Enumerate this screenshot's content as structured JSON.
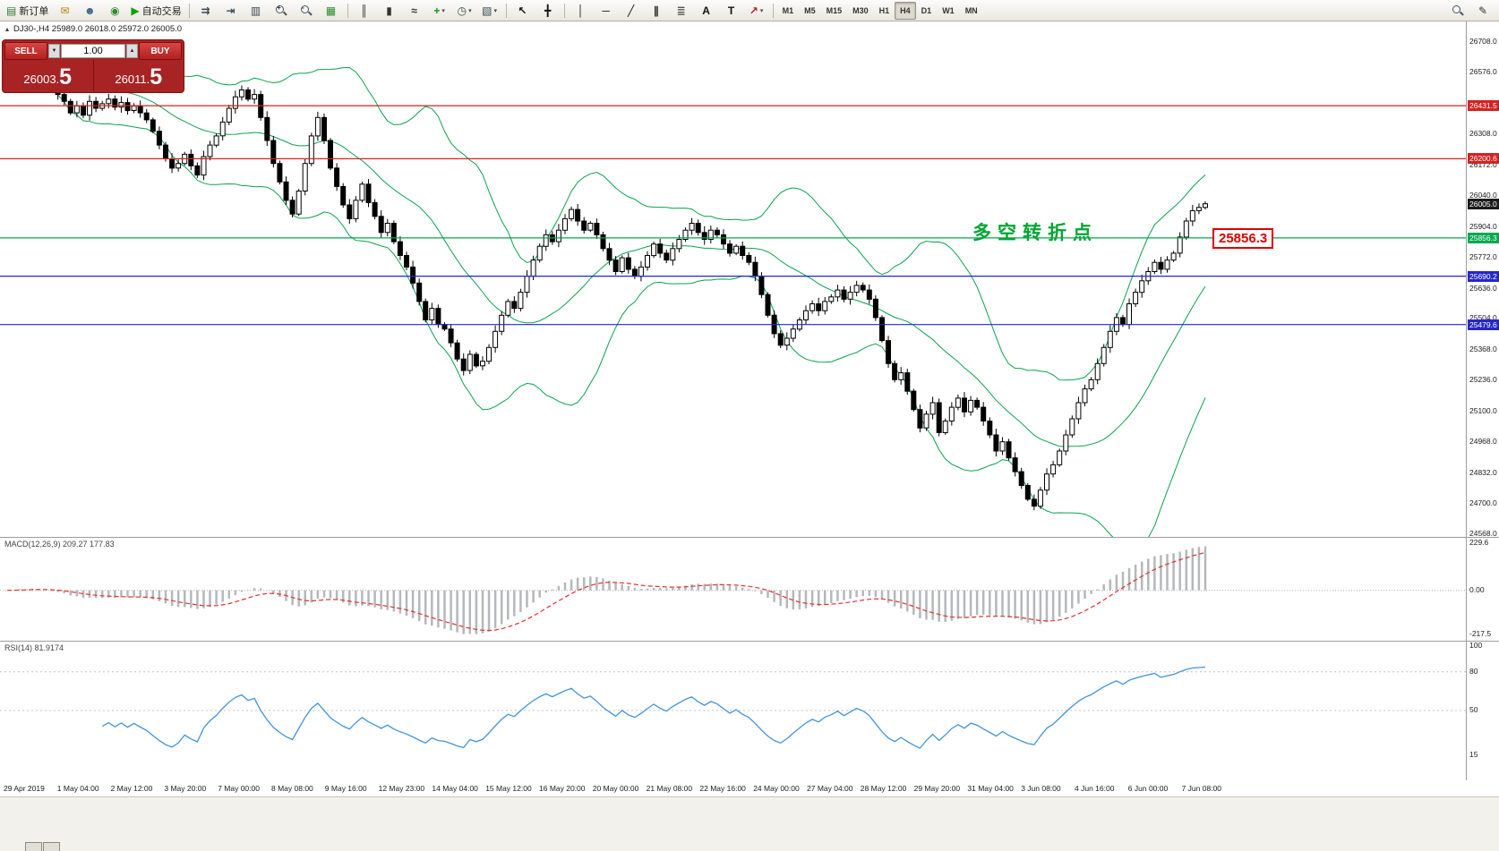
{
  "toolbar": {
    "new_order_label": "新订单",
    "auto_trading_label": "自动交易",
    "timeframes": [
      "M1",
      "M5",
      "M15",
      "M30",
      "H1",
      "H4",
      "D1",
      "W1",
      "MN"
    ],
    "active_timeframe": "H4",
    "items": [
      {
        "type": "btn",
        "name": "new-order-button",
        "glyph": "▤",
        "color": "#2e7d32",
        "label_key": "new_order_label"
      },
      {
        "type": "btn",
        "name": "mail-button",
        "glyph": "✉",
        "color": "#b8860b"
      },
      {
        "type": "btn",
        "name": "profile-button",
        "glyph": "☻",
        "color": "#36648b"
      },
      {
        "type": "btn",
        "name": "community-button",
        "glyph": "◉",
        "color": "#2e8b2e"
      },
      {
        "type": "btn",
        "name": "autotrading-button",
        "glyph": "▶",
        "color": "#12a012",
        "label_key": "auto_trading_label"
      },
      {
        "type": "sep"
      },
      {
        "type": "btn",
        "name": "autoscroll-button",
        "glyph": "⇉",
        "color": "#37474f"
      },
      {
        "type": "btn",
        "name": "chart-shift-button",
        "glyph": "⇥",
        "color": "#37474f"
      },
      {
        "type": "btn",
        "name": "data-window-button",
        "glyph": "▥",
        "color": "#37474f"
      },
      {
        "type": "mag",
        "name": "zoom-in-button",
        "sign": "+"
      },
      {
        "type": "mag",
        "name": "zoom-out-button",
        "sign": "-"
      },
      {
        "type": "btn",
        "name": "tile-windows-button",
        "glyph": "▦",
        "color": "#2e8b2e"
      },
      {
        "type": "sep"
      },
      {
        "type": "btn",
        "name": "bar-chart-button",
        "glyph": "║",
        "color": "#333333"
      },
      {
        "type": "btn",
        "name": "candlestick-chart-button",
        "glyph": "▮",
        "color": "#333333"
      },
      {
        "type": "btn",
        "name": "line-chart-button",
        "glyph": "≈",
        "color": "#333333"
      },
      {
        "type": "btn",
        "name": "indicators-button",
        "glyph": "+",
        "color": "#0c9c0c",
        "dd": true
      },
      {
        "type": "btn",
        "name": "periods-button",
        "glyph": "◷",
        "color": "#37474f",
        "dd": true
      },
      {
        "type": "btn",
        "name": "templates-button",
        "glyph": "▧",
        "color": "#37474f",
        "dd": true
      },
      {
        "type": "sep"
      },
      {
        "type": "btn",
        "name": "cursor-button",
        "glyph": "↖",
        "color": "#111111"
      },
      {
        "type": "btn",
        "name": "crosshair-button",
        "glyph": "╋",
        "color": "#111111"
      },
      {
        "type": "sep"
      },
      {
        "type": "btn",
        "name": "vertical-line-button",
        "glyph": "│",
        "color": "#111111"
      },
      {
        "type": "btn",
        "name": "horizontal-line-button",
        "glyph": "─",
        "color": "#111111"
      },
      {
        "type": "btn",
        "name": "trendline-button",
        "glyph": "╱",
        "color": "#111111"
      },
      {
        "type": "btn",
        "name": "equidistant-channel-button",
        "glyph": "∥",
        "color": "#111111"
      },
      {
        "type": "btn",
        "name": "fibonacci-button",
        "glyph": "≣",
        "color": "#555555"
      },
      {
        "type": "btn",
        "name": "text-button",
        "glyph": "A",
        "color": "#111111"
      },
      {
        "type": "btn",
        "name": "text-label-button",
        "glyph": "T",
        "color": "#111111"
      },
      {
        "type": "btn",
        "name": "arrows-button",
        "glyph": "↗",
        "color": "#b22222",
        "dd": true
      },
      {
        "type": "sep"
      },
      {
        "type": "tf"
      }
    ],
    "right_items": [
      {
        "type": "mag",
        "name": "search-button",
        "sign": ""
      },
      {
        "type": "btn",
        "name": "edit-button",
        "glyph": "✎",
        "color": "#333333"
      }
    ]
  },
  "icons": {
    "up_arrow": "▲",
    "down_arrow": "▼",
    "collapse": "▴",
    "dropdown": "▾"
  },
  "chart": {
    "title_line": "DJ30-,H4 25989.0 26018.0 25972.0 26005.0"
  },
  "trade_panel": {
    "sell_label": "SELL",
    "buy_label": "BUY",
    "volume": "1.00",
    "sell_price_main": "26003.",
    "sell_price_big": "5",
    "buy_price_main": "26011.",
    "buy_price_big": "5"
  },
  "annotation": {
    "text": "多空转折点",
    "color": "#00a632"
  },
  "callout": {
    "text": "25856.3",
    "color": "#e00000"
  },
  "panes": {
    "macd_label": "MACD(12,26,9) 209.27 177.83",
    "rsi_label": "RSI(14) 81.9174"
  },
  "chart_data": {
    "type": "candlestick",
    "symbol": "DJ30-",
    "period": "H4",
    "last_ohlc": {
      "open": 25989.0,
      "high": 26018.0,
      "low": 25972.0,
      "close": 26005.0
    },
    "y_range": [
      24568.0,
      26708.0
    ],
    "price_ticks": [
      26708,
      26576,
      26308,
      26172,
      26040,
      25904,
      25772,
      25636,
      25504,
      25368,
      25236,
      25100,
      24968,
      24832,
      24700,
      24568
    ],
    "levels": [
      {
        "price": 26431.5,
        "color": "#d42222"
      },
      {
        "price": 26200.6,
        "color": "#d42222"
      },
      {
        "price": 25856.3,
        "color": "#00a94f"
      },
      {
        "price": 25690.2,
        "color": "#2626cc"
      },
      {
        "price": 25479.6,
        "color": "#2626cc"
      }
    ],
    "current_price": 26005.0,
    "bollinger": {
      "period": 20,
      "deviation": 2,
      "color": "#0aa34e"
    },
    "macd": {
      "fast": 12,
      "slow": 26,
      "signal": 9,
      "main_value": 209.27,
      "signal_value": 177.83,
      "axis_ticks": [
        229.6,
        0,
        -217.5
      ],
      "bar_color": "#b4b8bc",
      "signal_color": "#e23131"
    },
    "rsi": {
      "period": 14,
      "value": 81.9174,
      "axis_ticks": [
        100,
        80,
        50,
        15
      ],
      "levels": [
        80,
        50
      ],
      "color": "#4394d8"
    },
    "closes": [
      26560,
      26590,
      26610,
      26580,
      26600,
      26570,
      26540,
      26510,
      26480,
      26450,
      26400,
      26430,
      26390,
      26450,
      26420,
      26440,
      26460,
      26425,
      26445,
      26410,
      26430,
      26400,
      26370,
      26320,
      26260,
      26200,
      26160,
      26180,
      26220,
      26170,
      26130,
      26210,
      26260,
      26300,
      26360,
      26420,
      26470,
      26500,
      26460,
      26480,
      26380,
      26280,
      26180,
      26100,
      26020,
      25960,
      26060,
      26180,
      26300,
      26380,
      26280,
      26160,
      26080,
      26000,
      25940,
      26020,
      26090,
      26010,
      25950,
      25880,
      25920,
      25840,
      25780,
      25730,
      25660,
      25580,
      25500,
      25550,
      25480,
      25460,
      25400,
      25330,
      25280,
      25350,
      25300,
      25320,
      25380,
      25450,
      25520,
      25580,
      25550,
      25620,
      25690,
      25760,
      25820,
      25870,
      25840,
      25890,
      25940,
      25980,
      25930,
      25890,
      25920,
      25870,
      25810,
      25760,
      25710,
      25770,
      25720,
      25690,
      25730,
      25780,
      25830,
      25790,
      25760,
      25810,
      25850,
      25890,
      25920,
      25880,
      25850,
      25890,
      25870,
      25830,
      25790,
      25820,
      25780,
      25750,
      25690,
      25610,
      25520,
      25440,
      25390,
      25420,
      25460,
      25500,
      25540,
      25570,
      25540,
      25580,
      25600,
      25630,
      25590,
      25620,
      25650,
      25630,
      25590,
      25510,
      25410,
      25310,
      25240,
      25270,
      25190,
      25110,
      25030,
      25090,
      25140,
      25010,
      25060,
      25120,
      25160,
      25100,
      25150,
      25120,
      25060,
      25000,
      24930,
      24970,
      24900,
      24840,
      24780,
      24720,
      24690,
      24760,
      24830,
      24870,
      24930,
      25000,
      25070,
      25140,
      25200,
      25240,
      25310,
      25380,
      25450,
      25510,
      25480,
      25570,
      25620,
      25670,
      25710,
      25750,
      25720,
      25760,
      25790,
      25860,
      25930,
      25975,
      25989,
      26005
    ],
    "time_labels": [
      "29 Apr 2019",
      "1 May 04:00",
      "2 May 12:00",
      "3 May 20:00",
      "7 May 00:00",
      "8 May 08:00",
      "9 May 16:00",
      "12 May 23:00",
      "14 May 04:00",
      "15 May 12:00",
      "16 May 20:00",
      "20 May 00:00",
      "21 May 08:00",
      "22 May 16:00",
      "24 May 00:00",
      "27 May 04:00",
      "28 May 12:00",
      "29 May 20:00",
      "31 May 04:00",
      "3 Jun 08:00",
      "4 Jun 16:00",
      "6 Jun 00:00",
      "7 Jun 08:00"
    ]
  }
}
